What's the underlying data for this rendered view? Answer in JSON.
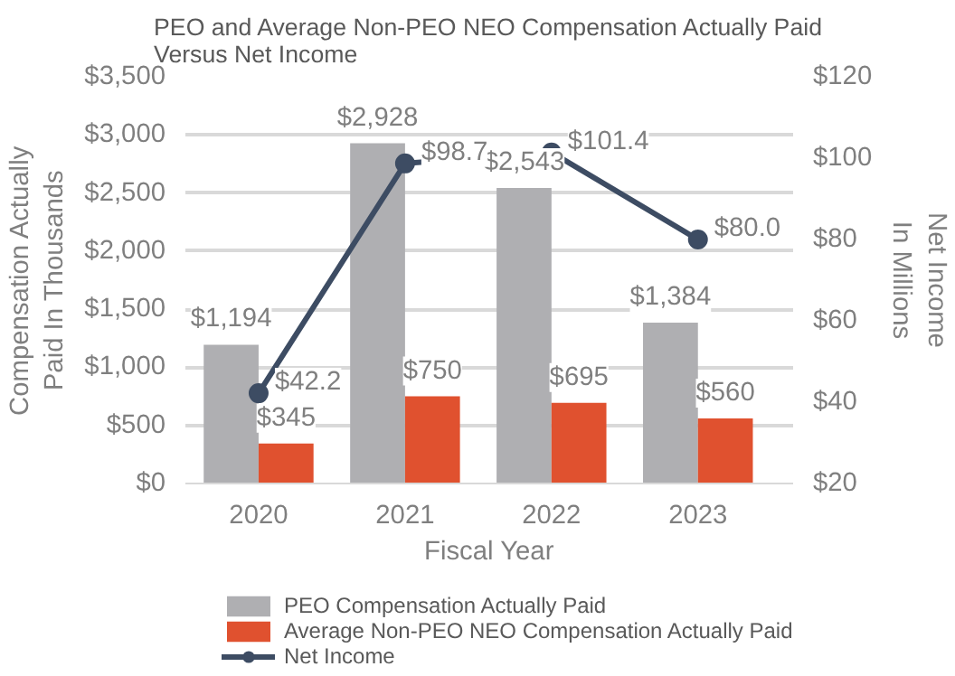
{
  "chart_data": {
    "type": "bar",
    "title": "PEO and Average Non-PEO NEO Compensation Actually Paid\nVersus Net Income",
    "xlabel": "Fiscal Year",
    "ylabel": "Compensation Actually Paid In Thousands",
    "y2label": "Net Income In Millions",
    "categories": [
      "2020",
      "2021",
      "2022",
      "2023"
    ],
    "series": [
      {
        "name": "PEO Compensation Actually Paid",
        "color": "#afafb2",
        "values": [
          1194,
          2928,
          2543,
          1384
        ],
        "value_labels": [
          "$1,194",
          "$2,928",
          "$2,543",
          "$1,384"
        ]
      },
      {
        "name": "Average Non-PEO NEO Compensation Actually Paid",
        "color": "#e0512f",
        "values": [
          345,
          750,
          695,
          560
        ],
        "value_labels": [
          "$345",
          "$750",
          "$695",
          "$560"
        ]
      },
      {
        "name": "Net Income",
        "type": "line",
        "axis": "y2",
        "color": "#3d4c63",
        "marker": "circle",
        "values": [
          42.2,
          98.7,
          101.4,
          80.0
        ],
        "value_labels": [
          "$42.2",
          "$98.7",
          "$101.4",
          "$80.0"
        ]
      }
    ],
    "ylim": [
      0,
      3500
    ],
    "yticks": [
      {
        "value": 0,
        "label": "$0"
      },
      {
        "value": 500,
        "label": "$500"
      },
      {
        "value": 1000,
        "label": "$1,000"
      },
      {
        "value": 1500,
        "label": "$1,500"
      },
      {
        "value": 2000,
        "label": "$2,000"
      },
      {
        "value": 2500,
        "label": "$2,500"
      },
      {
        "value": 3000,
        "label": "$3,000"
      },
      {
        "value": 3500,
        "label": "$3,500"
      }
    ],
    "y2lim": [
      20,
      120
    ],
    "y2ticks": [
      {
        "value": 20,
        "label": "$20"
      },
      {
        "value": 40,
        "label": "$40"
      },
      {
        "value": 60,
        "label": "$60"
      },
      {
        "value": 80,
        "label": "$80"
      },
      {
        "value": 100,
        "label": "$100"
      },
      {
        "value": 120,
        "label": "$120"
      }
    ],
    "grid": "y",
    "legend": "bottom"
  }
}
